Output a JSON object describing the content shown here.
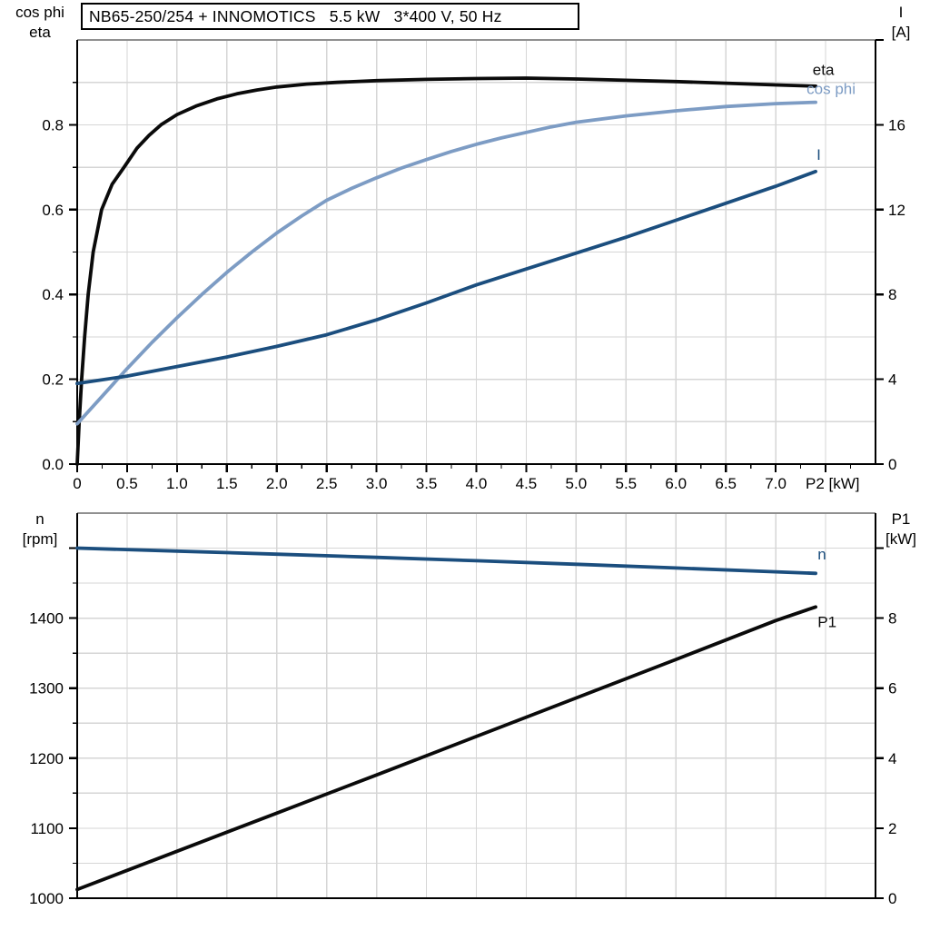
{
  "title": "NB65-250/254 + INNOMOTICS   5.5 kW   3*400 V, 50 Hz",
  "corner_labels": {
    "top_left": [
      "cos phi",
      "eta"
    ],
    "top_right": [
      "I",
      "[A]"
    ],
    "bottom_left": [
      "n",
      "[rpm]"
    ],
    "bottom_right": [
      "P1",
      "[kW]"
    ]
  },
  "colors": {
    "black_curve": "#0a0a0a",
    "dark_blue_curve": "#1b4e7e",
    "light_blue_curve": "#7d9cc4",
    "grid": "#d6d6d6",
    "plot_top_border": "#909090",
    "axis": "#000000",
    "text": "#000000"
  },
  "chart_data": [
    {
      "type": "line",
      "position": "top",
      "title": "NB65-250/254 + INNOMOTICS   5.5 kW   3*400 V, 50 Hz",
      "x_axis": {
        "label": "P2 [kW]",
        "range": [
          0,
          8
        ],
        "grid_step": 0.5,
        "minor_tick_step": 0.25,
        "show_ticks": true,
        "axis_label_at": 7.57,
        "major_ticks": [
          0,
          0.5,
          1,
          1.5,
          2,
          2.5,
          3,
          3.5,
          4,
          4.5,
          5,
          5.5,
          6,
          6.5,
          7
        ],
        "major_tick_labels": [
          "0",
          "0.5",
          "1.0",
          "1.5",
          "2.0",
          "2.5",
          "3.0",
          "3.5",
          "4.0",
          "4.5",
          "5.0",
          "5.5",
          "6.0",
          "6.5",
          "7.0"
        ]
      },
      "left_axis": {
        "label": "cos phi / eta",
        "range": [
          0,
          1.0
        ],
        "grid_step": 0.1,
        "minor_tick_step": 0.1,
        "major_ticks": [
          0,
          0.2,
          0.4,
          0.6,
          0.8
        ],
        "major_tick_labels": [
          "0.0",
          "0.2",
          "0.4",
          "0.6",
          "0.8"
        ]
      },
      "right_axis": {
        "label": "I [A]",
        "range": [
          0,
          20
        ],
        "major_ticks": [
          0,
          4,
          8,
          12,
          16,
          20
        ],
        "major_tick_labels": [
          "0",
          "4",
          "8",
          "12",
          "16",
          ""
        ]
      },
      "series": [
        {
          "name": "eta",
          "label": "eta",
          "axis": "left",
          "color": "#0a0a0a",
          "label_at": [
            7.37,
            0.918
          ],
          "points": [
            [
              0,
              0
            ],
            [
              0.02,
              0.1
            ],
            [
              0.045,
              0.2
            ],
            [
              0.075,
              0.3
            ],
            [
              0.11,
              0.4
            ],
            [
              0.16,
              0.5
            ],
            [
              0.245,
              0.6
            ],
            [
              0.35,
              0.66
            ],
            [
              0.47,
              0.7
            ],
            [
              0.6,
              0.745
            ],
            [
              0.72,
              0.775
            ],
            [
              0.84,
              0.8
            ],
            [
              1,
              0.824
            ],
            [
              1.2,
              0.845
            ],
            [
              1.4,
              0.861
            ],
            [
              1.6,
              0.873
            ],
            [
              1.8,
              0.882
            ],
            [
              2,
              0.889
            ],
            [
              2.3,
              0.896
            ],
            [
              2.6,
              0.9
            ],
            [
              3,
              0.904
            ],
            [
              3.5,
              0.907
            ],
            [
              4,
              0.909
            ],
            [
              4.5,
              0.91
            ],
            [
              5,
              0.908
            ],
            [
              5.5,
              0.905
            ],
            [
              6,
              0.902
            ],
            [
              6.5,
              0.898
            ],
            [
              7,
              0.894
            ],
            [
              7.4,
              0.891
            ]
          ]
        },
        {
          "name": "cos phi",
          "label": "cos phi",
          "axis": "left",
          "color": "#7d9cc4",
          "label_at": [
            7.31,
            0.873
          ],
          "points": [
            [
              0,
              0.095
            ],
            [
              0.25,
              0.16
            ],
            [
              0.5,
              0.225
            ],
            [
              0.75,
              0.287
            ],
            [
              1,
              0.345
            ],
            [
              1.25,
              0.4
            ],
            [
              1.5,
              0.452
            ],
            [
              1.75,
              0.5
            ],
            [
              2,
              0.545
            ],
            [
              2.25,
              0.585
            ],
            [
              2.5,
              0.622
            ],
            [
              2.75,
              0.65
            ],
            [
              3,
              0.675
            ],
            [
              3.25,
              0.698
            ],
            [
              3.5,
              0.718
            ],
            [
              3.75,
              0.737
            ],
            [
              4,
              0.754
            ],
            [
              4.25,
              0.769
            ],
            [
              4.5,
              0.782
            ],
            [
              4.75,
              0.795
            ],
            [
              5,
              0.806
            ],
            [
              5.5,
              0.821
            ],
            [
              6,
              0.833
            ],
            [
              6.5,
              0.843
            ],
            [
              7,
              0.85
            ],
            [
              7.4,
              0.853
            ]
          ]
        },
        {
          "name": "I",
          "label": "I",
          "axis": "right",
          "color": "#1b4e7e",
          "label_at": [
            7.41,
            14.35
          ],
          "points": [
            [
              0,
              3.8
            ],
            [
              0.5,
              4.15
            ],
            [
              1,
              4.6
            ],
            [
              1.5,
              5.05
            ],
            [
              2,
              5.55
            ],
            [
              2.5,
              6.1
            ],
            [
              3,
              6.8
            ],
            [
              3.5,
              7.6
            ],
            [
              4,
              8.45
            ],
            [
              4.5,
              9.2
            ],
            [
              5,
              9.95
            ],
            [
              5.5,
              10.7
            ],
            [
              6,
              11.5
            ],
            [
              6.5,
              12.3
            ],
            [
              7,
              13.1
            ],
            [
              7.4,
              13.8
            ]
          ]
        }
      ]
    },
    {
      "type": "line",
      "position": "bottom",
      "x_axis": {
        "label": "",
        "range": [
          0,
          8
        ],
        "grid_step": 0.5,
        "show_ticks": false
      },
      "left_axis": {
        "label": "n [rpm]",
        "range": [
          1000,
          1550
        ],
        "grid_step": 50,
        "minor_tick_step": 50,
        "major_ticks": [
          1000,
          1100,
          1200,
          1300,
          1400,
          1500
        ],
        "major_tick_labels": [
          "1000",
          "1100",
          "1200",
          "1300",
          "1400",
          ""
        ]
      },
      "right_axis": {
        "label": "P1 [kW]",
        "range": [
          0,
          11
        ],
        "major_ticks": [
          0,
          2,
          4,
          6,
          8,
          10
        ],
        "major_tick_labels": [
          "0",
          "2",
          "4",
          "6",
          "8",
          ""
        ]
      },
      "series": [
        {
          "name": "n",
          "label": "n",
          "axis": "left",
          "color": "#1b4e7e",
          "label_at": [
            7.42,
            1484
          ],
          "points": [
            [
              0,
              1500
            ],
            [
              1,
              1495.8
            ],
            [
              2,
              1491.4
            ],
            [
              3,
              1486.8
            ],
            [
              4,
              1482
            ],
            [
              5,
              1477
            ],
            [
              6,
              1471.7
            ],
            [
              7,
              1466.2
            ],
            [
              7.4,
              1464
            ]
          ]
        },
        {
          "name": "P1",
          "label": "P1",
          "axis": "right",
          "color": "#0a0a0a",
          "label_at": [
            7.42,
            7.75
          ],
          "points": [
            [
              0,
              0.25
            ],
            [
              1,
              1.34
            ],
            [
              2,
              2.43
            ],
            [
              3,
              3.52
            ],
            [
              4,
              4.62
            ],
            [
              5,
              5.72
            ],
            [
              6,
              6.82
            ],
            [
              7,
              7.93
            ],
            [
              7.4,
              8.32
            ]
          ]
        }
      ]
    }
  ]
}
